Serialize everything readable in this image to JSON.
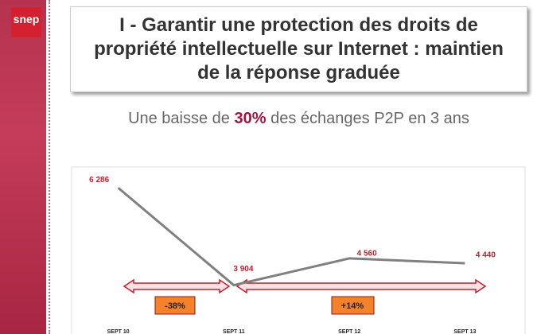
{
  "logo": "snep",
  "header": {
    "title": "I - Garantir une protection des droits de propriété intellectuelle sur Internet : maintien de la réponse graduée"
  },
  "subtitle": [
    "Une baisse de",
    "30%",
    "des échanges P2P en 3 ans"
  ],
  "chart_data": {
    "type": "line",
    "categories": [
      "SEPT 10",
      "SEPT 11",
      "SEPT 12",
      "SEPT 13"
    ],
    "values": [
      6286,
      3904,
      4560,
      4440
    ],
    "value_labels": [
      "6 286",
      "3 904",
      "4 560",
      "4 440"
    ],
    "color": "#808080",
    "ylim": [
      3000,
      6700
    ],
    "annotations": [
      "-38%",
      "+14%"
    ]
  }
}
